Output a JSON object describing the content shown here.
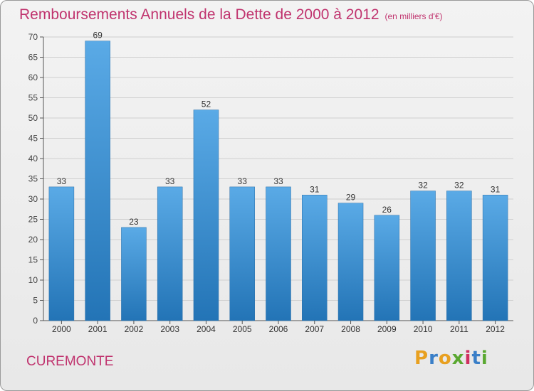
{
  "header": {
    "title": "Remboursements Annuels de la Dette de 2000 à 2012",
    "subtitle": "(en milliers d'€)"
  },
  "footer": {
    "place": "CUREMONTE",
    "brand_letters": [
      "P",
      "r",
      "o",
      "x",
      "i",
      "t",
      "i"
    ],
    "brand_colors": [
      "#e8a020",
      "#3a7fc8",
      "#e8a020",
      "#5aa830",
      "#d03060",
      "#3a7fc8",
      "#5aa830"
    ]
  },
  "colors": {
    "bar_top": "#5aaae6",
    "bar_bottom": "#2374b6",
    "title": "#c0336e"
  },
  "chart_data": {
    "type": "bar",
    "title": "Remboursements Annuels de la Dette de 2000 à 2012",
    "subtitle": "(en milliers d'€)",
    "categories": [
      "2000",
      "2001",
      "2002",
      "2003",
      "2004",
      "2005",
      "2006",
      "2007",
      "2008",
      "2009",
      "2010",
      "2011",
      "2012"
    ],
    "values": [
      33,
      69,
      23,
      33,
      52,
      33,
      33,
      31,
      29,
      26,
      32,
      32,
      31
    ],
    "ylim": [
      0,
      70
    ],
    "yticks": [
      0,
      5,
      10,
      15,
      20,
      25,
      30,
      35,
      40,
      45,
      50,
      55,
      60,
      65,
      70
    ],
    "grid": true,
    "legend": "none"
  }
}
